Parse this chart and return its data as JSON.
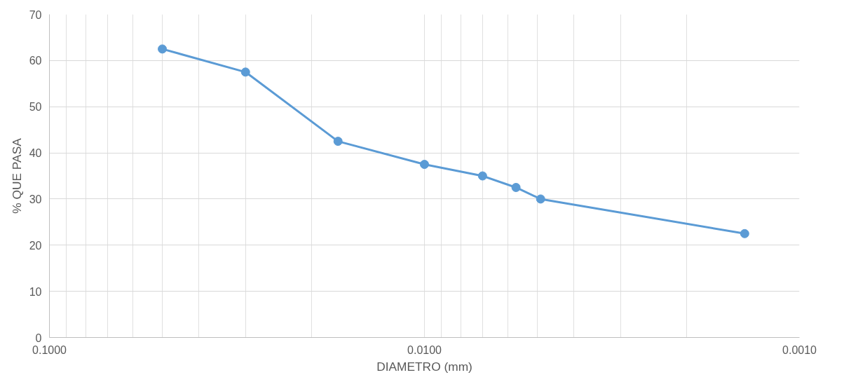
{
  "chart_data": {
    "type": "line",
    "xlabel": "DIAMETRO (mm)",
    "ylabel": "% QUE PASA",
    "x": [
      0.05,
      0.03,
      0.017,
      0.01,
      0.007,
      0.0057,
      0.0049,
      0.0014
    ],
    "series": [
      {
        "color": "#5b9bd5",
        "values": [
          62.5,
          57.5,
          42.5,
          37.5,
          35,
          32.5,
          30,
          22.5
        ]
      }
    ],
    "log": "x",
    "xlim": [
      0.1,
      0.001
    ],
    "xticks": [
      {
        "value": 0.1,
        "label": "0.1000"
      },
      {
        "value": 0.01,
        "label": "0.0100"
      },
      {
        "value": 0.001,
        "label": "0.0010"
      }
    ],
    "ylim": [
      0,
      70
    ],
    "yticks": [
      0,
      10,
      20,
      30,
      40,
      50,
      60,
      70
    ],
    "grid": true,
    "marker": "circle",
    "line_style": "solid"
  }
}
